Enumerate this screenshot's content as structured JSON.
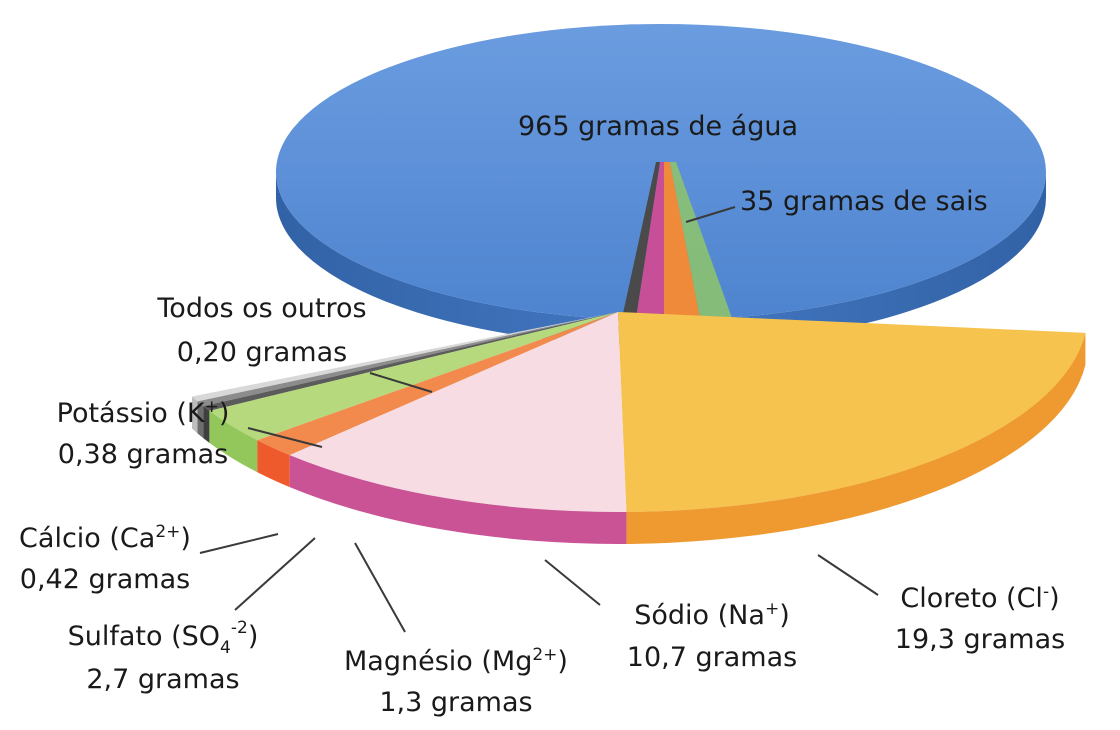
{
  "chart_data": {
    "type": "pie",
    "style": "3d-exploded-pie",
    "total": {
      "water_label": "965 gramas de água",
      "salts_label": "35 gramas de sais",
      "values": [
        965,
        35
      ]
    },
    "breakdown": [
      {
        "key": "cloreto",
        "name": "Cloreto (Cl",
        "ion": "-",
        "suffix": ")",
        "amount_label": "19,3 gramas",
        "value": 19.3,
        "top": "#f6c34e",
        "side": "#ee9a30"
      },
      {
        "key": "sodio",
        "name": "Sódio (Na",
        "ion": "+",
        "suffix": ")",
        "amount_label": "10,7 gramas",
        "value": 10.7,
        "top": "#f7dde3",
        "side": "#c95394"
      },
      {
        "key": "magnesio",
        "name": "Magnésio (Mg",
        "ion": "2+",
        "suffix": ")",
        "amount_label": "1,3 gramas",
        "value": 1.3,
        "top": "#f28a4e",
        "side": "#ee5a2c"
      },
      {
        "key": "sulfato",
        "name": "Sulfato (SO",
        "sub": "4",
        "ion": "-2",
        "suffix": ")",
        "amount_label": "2,7 gramas",
        "value": 2.7,
        "top": "#b5d97c",
        "side": "#93c75b"
      },
      {
        "key": "calcio",
        "name": "Cálcio (Ca",
        "ion": "2+",
        "suffix": ")",
        "amount_label": "0,42 gramas",
        "value": 0.42,
        "top": "#5b5b5b",
        "side": "#3f3f3f"
      },
      {
        "key": "potassio",
        "name": "Potássio (K",
        "ion": "+",
        "suffix": ")",
        "amount_label": "0,38 gramas",
        "value": 0.38,
        "top": "#8c8c8c",
        "side": "#6d6d6d"
      },
      {
        "key": "outros",
        "name": "Todos os outros",
        "amount_label": "0,20 gramas",
        "value": 0.2,
        "top": "#d8d8d8",
        "side": "#bdbdbd"
      }
    ],
    "colors": {
      "water_top": "#5b8fd6",
      "water_side": "#3a6cb3",
      "wedge_orange": "#ee8a3a",
      "wedge_pink": "#c64f97",
      "wedge_green": "#8fc66a"
    }
  }
}
